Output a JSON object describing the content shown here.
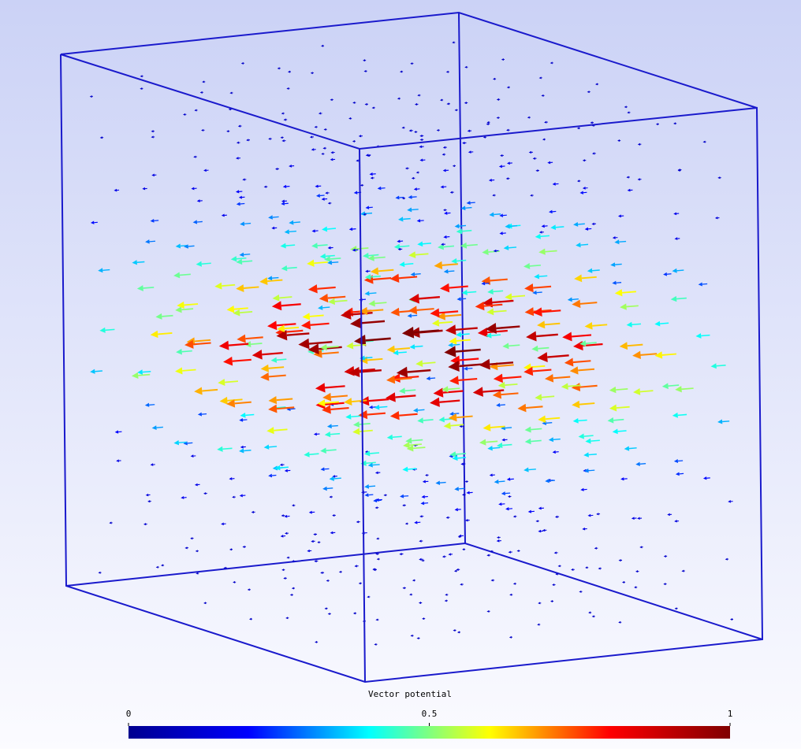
{
  "colorbar": {
    "title": "Vector potential",
    "lim": [
      0,
      1
    ],
    "ticks": [
      0,
      0.5,
      1
    ],
    "colors": [
      "#00008f",
      "#0000ff",
      "#00ffff",
      "#ffff00",
      "#ff0000",
      "#800000"
    ]
  }
}
